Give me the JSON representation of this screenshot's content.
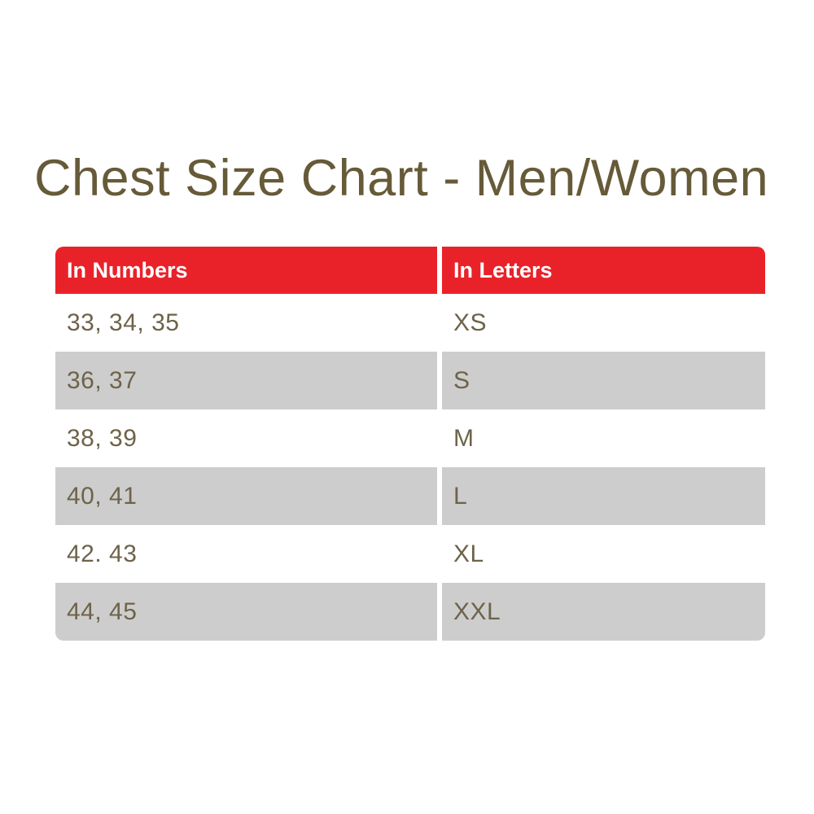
{
  "page": {
    "title": "Chest Size Chart - Men/Women"
  },
  "colors": {
    "page_bg": "#ffffff",
    "title_text": "#665a38",
    "header_bg": "#e9222a",
    "header_text": "#ffffff",
    "row_bg": "#ffffff",
    "row_alt_bg": "#cdcdcd",
    "cell_text": "#6e6349"
  },
  "chart_data": {
    "type": "table",
    "title": "Chest Size Chart - Men/Women",
    "columns": [
      "In Numbers",
      "In Letters"
    ],
    "rows": [
      [
        "33, 34, 35",
        "XS"
      ],
      [
        "36, 37",
        "S"
      ],
      [
        "38, 39",
        "M"
      ],
      [
        "40, 41",
        "L"
      ],
      [
        "42. 43",
        "XL"
      ],
      [
        "44, 45",
        "XXL"
      ]
    ]
  }
}
